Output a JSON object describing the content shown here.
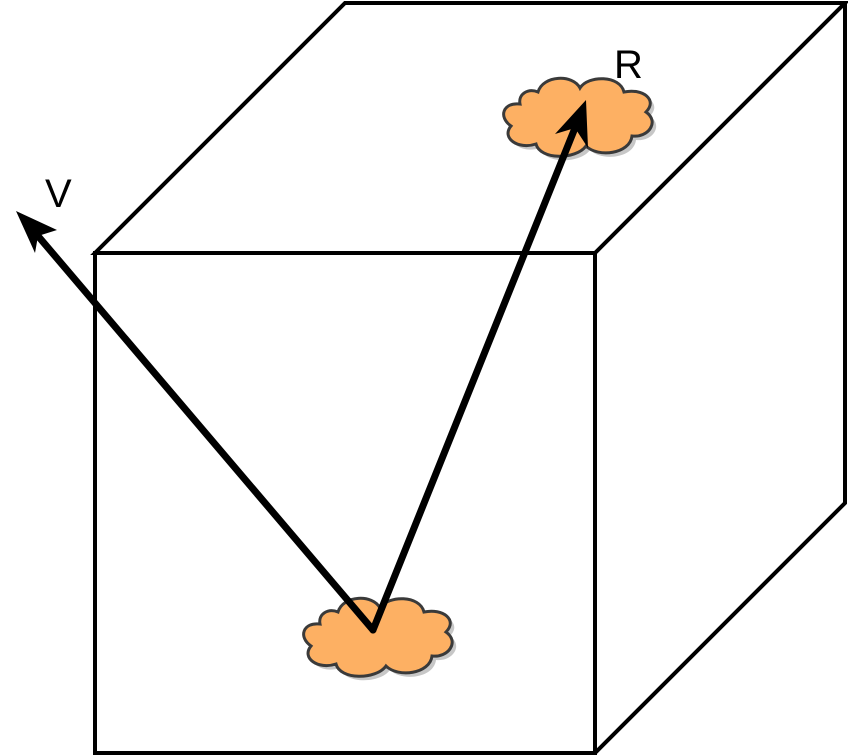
{
  "colors": {
    "stroke": "#000000",
    "cloud_fill": "#FDB063",
    "cloud_outline": "#3a3a3a",
    "background": "#ffffff"
  },
  "labels": {
    "v": "V",
    "r": "R"
  },
  "shapes": {
    "cube": "wireframe-cube",
    "bottom_cloud": "cloud",
    "top_cloud": "cloud"
  }
}
